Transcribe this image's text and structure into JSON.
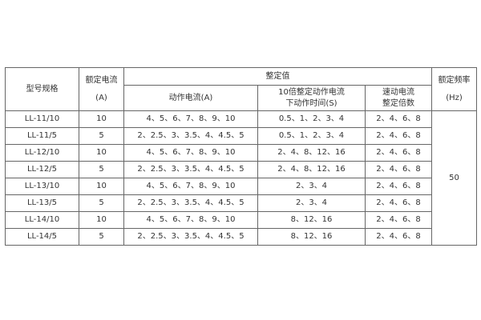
{
  "headers": {
    "model": "型号规格",
    "rated_current": [
      "额定电流",
      "(A)"
    ],
    "setting": "整定值",
    "action_current": "动作电流(A)",
    "action_time": [
      "10倍整定动作电流",
      "下动作时间(S)"
    ],
    "quick_multiple": [
      "速动电流",
      "整定倍数"
    ],
    "rated_freq": [
      "额定频率",
      "(Hz)"
    ]
  },
  "frequency": "50",
  "rows": [
    {
      "model": "LL-11/10",
      "current": "10",
      "action": "4、5、6、7、8、9、10",
      "time": "0.5、1、2、3、4",
      "multiple": "2、4、6、8"
    },
    {
      "model": "LL-11/5",
      "current": "5",
      "action": "2、2.5、3、3.5、4、4.5、5",
      "time": "0.5、1、2、3、4",
      "multiple": "2、4、6、8"
    },
    {
      "model": "LL-12/10",
      "current": "10",
      "action": "4、5、6、7、8、9、10",
      "time": "2、4、8、12、16",
      "multiple": "2、4、6、8"
    },
    {
      "model": "LL-12/5",
      "current": "5",
      "action": "2、2.5、3、3.5、4、4.5、5",
      "time": "2、4、8、12、16",
      "multiple": "2、4、6、8"
    },
    {
      "model": "LL-13/10",
      "current": "10",
      "action": "4、5、6、7、8、9、10",
      "time": "2、3、4",
      "multiple": "2、4、6、8"
    },
    {
      "model": "LL-13/5",
      "current": "5",
      "action": "2、2.5、3、3.5、4、4.5、5",
      "time": "2、3、4",
      "multiple": "2、4、6、8"
    },
    {
      "model": "LL-14/10",
      "current": "10",
      "action": "4、5、6、7、8、9、10",
      "time": "8、12、16",
      "multiple": "2、4、6、8"
    },
    {
      "model": "LL-14/5",
      "current": "5",
      "action": "2、2.5、3、3.5、4、4.5、5",
      "time": "8、12、16",
      "multiple": "2、4、6、8"
    }
  ]
}
